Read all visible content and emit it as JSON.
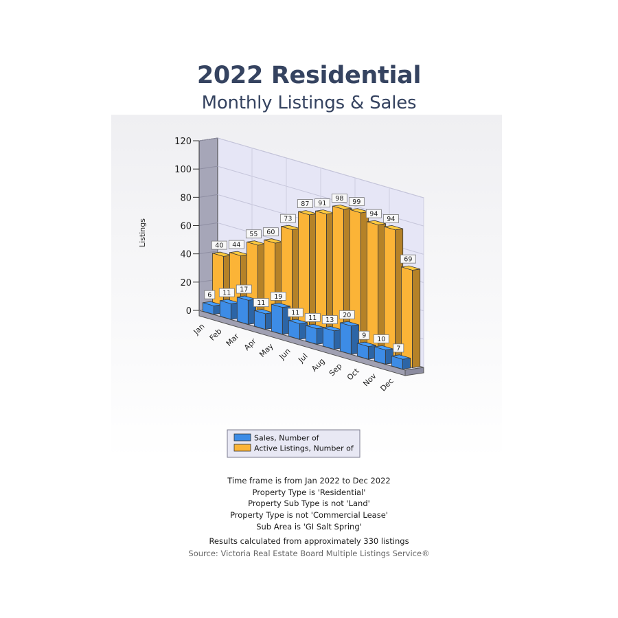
{
  "header": {
    "title": "2022 Residential",
    "subtitle": "Monthly Listings & Sales"
  },
  "chart_data": {
    "type": "bar",
    "ylabel": "Listings",
    "ylim": [
      0,
      120
    ],
    "yticks": [
      "0",
      "20",
      "40",
      "60",
      "80",
      "100",
      "120"
    ],
    "categories": [
      "Jan",
      "Feb",
      "Mar",
      "Apr",
      "May",
      "Jun",
      "Jul",
      "Aug",
      "Sep",
      "Oct",
      "Nov",
      "Dec"
    ],
    "series": [
      {
        "name": "Sales, Number of",
        "color": "#3d8ce6",
        "values": [
          6,
          11,
          17,
          11,
          19,
          11,
          11,
          13,
          20,
          9,
          10,
          7
        ]
      },
      {
        "name": "Active Listings, Number of",
        "color": "#fbb437",
        "values": [
          40,
          44,
          55,
          60,
          73,
          87,
          91,
          98,
          99,
          94,
          94,
          69
        ]
      }
    ],
    "legend_position": "bottom",
    "grid": true,
    "style": "3d"
  },
  "footer": {
    "lines": [
      "Time frame is from Jan 2022 to Dec 2022",
      "Property Type is 'Residential'",
      "Property Sub Type is not 'Land'",
      "Property Type is not 'Commercial Lease'",
      "Sub Area is 'GI Salt Spring'"
    ],
    "results": "Results calculated from approximately 330 listings",
    "source": "Source: Victoria Real Estate Board Multiple Listings Service®"
  }
}
